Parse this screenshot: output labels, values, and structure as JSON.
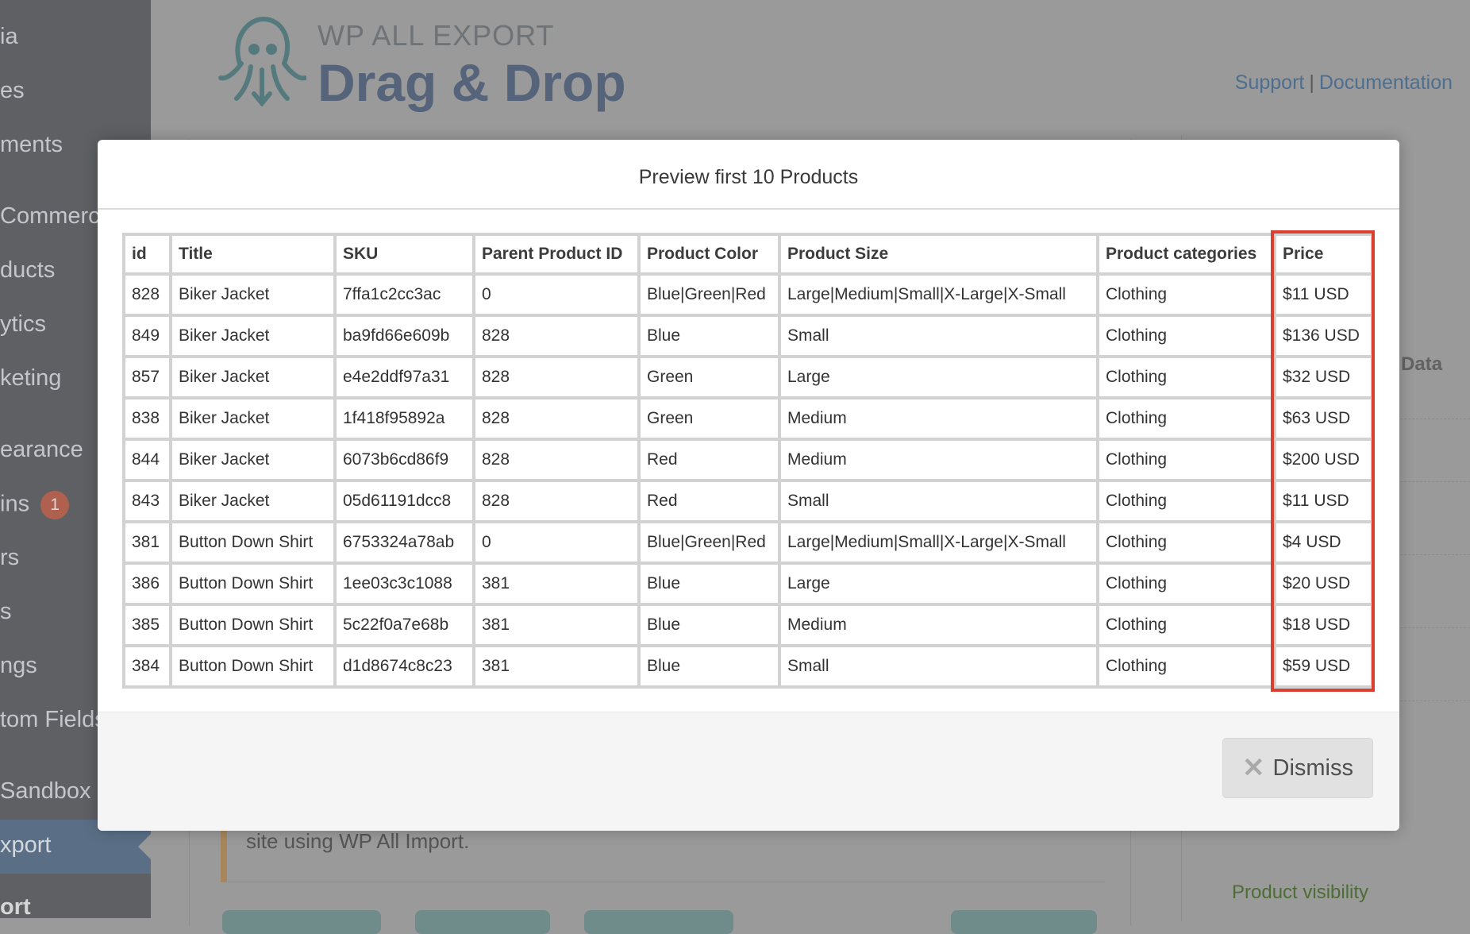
{
  "sidebar": {
    "items": [
      {
        "label": "ia"
      },
      {
        "label": "es"
      },
      {
        "label": "ments"
      },
      {
        "label": "Commerce"
      },
      {
        "label": "ducts"
      },
      {
        "label": "ytics"
      },
      {
        "label": "keting"
      },
      {
        "label": "earance"
      },
      {
        "label": "ins"
      },
      {
        "label": "rs"
      },
      {
        "label": "s"
      },
      {
        "label": "ngs"
      },
      {
        "label": "tom Fields"
      },
      {
        "label": "Sandbox"
      },
      {
        "label": "xport"
      },
      {
        "label": "ort"
      }
    ],
    "plugins_badge": "1",
    "active_color": "#5a6f86"
  },
  "header": {
    "logo_small": "WP ALL EXPORT",
    "logo_big": "Drag & Drop",
    "logo_icon": "octopus-icon",
    "support_link": "Support",
    "separator": "|",
    "documentation_link": "Documentation"
  },
  "background": {
    "notice_text": "site using WP All Import.",
    "right_label": "e Data",
    "visibility_label": "Product visibility"
  },
  "modal": {
    "title": "Preview first 10 Products",
    "columns": [
      "id",
      "Title",
      "SKU",
      "Parent Product ID",
      "Product Color",
      "Product Size",
      "Product categories",
      "Price"
    ],
    "rows": [
      [
        "828",
        "Biker Jacket",
        "7ffa1c2cc3ac",
        "0",
        "Blue|Green|Red",
        "Large|Medium|Small|X-Large|X-Small",
        "Clothing",
        "$11 USD"
      ],
      [
        "849",
        "Biker Jacket",
        "ba9fd66e609b",
        "828",
        "Blue",
        "Small",
        "Clothing",
        "$136 USD"
      ],
      [
        "857",
        "Biker Jacket",
        "e4e2ddf97a31",
        "828",
        "Green",
        "Large",
        "Clothing",
        "$32 USD"
      ],
      [
        "838",
        "Biker Jacket",
        "1f418f95892a",
        "828",
        "Green",
        "Medium",
        "Clothing",
        "$63 USD"
      ],
      [
        "844",
        "Biker Jacket",
        "6073b6cd86f9",
        "828",
        "Red",
        "Medium",
        "Clothing",
        "$200 USD"
      ],
      [
        "843",
        "Biker Jacket",
        "05d61191dcc8",
        "828",
        "Red",
        "Small",
        "Clothing",
        "$11 USD"
      ],
      [
        "381",
        "Button Down Shirt",
        "6753324a78ab",
        "0",
        "Blue|Green|Red",
        "Large|Medium|Small|X-Large|X-Small",
        "Clothing",
        "$4 USD"
      ],
      [
        "386",
        "Button Down Shirt",
        "1ee03c3c1088",
        "381",
        "Blue",
        "Large",
        "Clothing",
        "$20 USD"
      ],
      [
        "385",
        "Button Down Shirt",
        "5c22f0a7e68b",
        "381",
        "Blue",
        "Medium",
        "Clothing",
        "$18 USD"
      ],
      [
        "384",
        "Button Down Shirt",
        "d1d8674c8c23",
        "381",
        "Blue",
        "Small",
        "Clothing",
        "$59 USD"
      ]
    ],
    "highlight_color": "#d9402f",
    "dismiss_label": "Dismiss",
    "dismiss_icon": "close-icon"
  }
}
